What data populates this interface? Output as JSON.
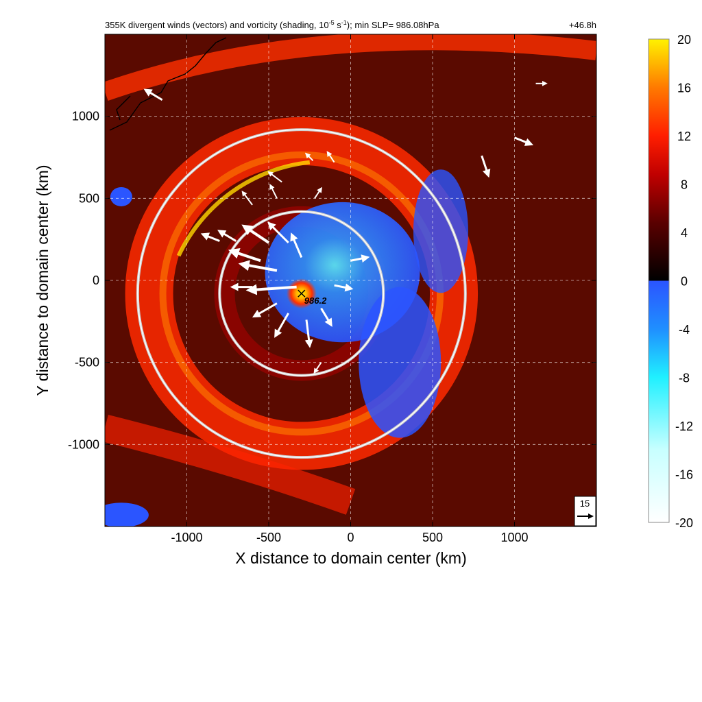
{
  "chart_data": {
    "type": "heatmap",
    "title": "355K divergent winds (vectors) and vorticity (shading, 10",
    "title_sup1": "-5",
    "title_mid": " s",
    "title_sup2": "-1",
    "title_end": "); min SLP= 986.08hPa",
    "time_label": "+46.8h",
    "xlabel": "X distance to domain center (km)",
    "ylabel": "Y distance to domain center (km)",
    "xlim": [
      -1500,
      1500
    ],
    "ylim": [
      -1500,
      1500
    ],
    "xticks": [
      -1000,
      -500,
      0,
      500,
      1000
    ],
    "yticks": [
      -1000,
      -500,
      0,
      500,
      1000
    ],
    "grid": true,
    "colorbar": {
      "ticks": [
        20,
        16,
        12,
        8,
        4,
        0,
        -4,
        -8,
        -12,
        -16,
        -20
      ],
      "range": [
        -20,
        20
      ],
      "positive_colors": [
        "#000000",
        "#5a0000",
        "#b30000",
        "#ff1e00",
        "#ff7a00",
        "#ffc800",
        "#fff200"
      ],
      "negative_colors": [
        "#2b55ff",
        "#1f8fff",
        "#00d8ff",
        "#5cf2ff",
        "#c8ffff",
        "#ffffff"
      ]
    },
    "storm_center": {
      "x": -300,
      "y": -80,
      "label": "986.2"
    },
    "range_rings_km": [
      500,
      1000
    ],
    "reference_vector": {
      "label": "15",
      "speed": 15
    },
    "vorticity_features": [
      {
        "kind": "outer_ring",
        "value": 12,
        "radius": 930
      },
      {
        "kind": "inner_ring",
        "value": 10,
        "radius": 470
      },
      {
        "kind": "northern_band",
        "value": 9
      },
      {
        "kind": "central_negative",
        "value": -6,
        "radius": 450
      },
      {
        "kind": "core_max",
        "value": 20,
        "x": -300,
        "y": -80
      }
    ],
    "vectors_description": "divergent wind vectors radiating outward from storm center",
    "vectors": [
      {
        "x": -330,
        "y": -40,
        "u": -30,
        "v": -2
      },
      {
        "x": -450,
        "y": 60,
        "u": -22,
        "v": 4
      },
      {
        "x": -550,
        "y": 120,
        "u": -18,
        "v": 6
      },
      {
        "x": -500,
        "y": 230,
        "u": -15,
        "v": 10
      },
      {
        "x": -380,
        "y": 230,
        "u": -12,
        "v": 12
      },
      {
        "x": -300,
        "y": 140,
        "u": -6,
        "v": 14
      },
      {
        "x": -450,
        "y": -140,
        "u": -14,
        "v": -8
      },
      {
        "x": -380,
        "y": -200,
        "u": -8,
        "v": -14
      },
      {
        "x": -270,
        "y": -240,
        "u": 2,
        "v": -16
      },
      {
        "x": -180,
        "y": -170,
        "u": 6,
        "v": -10
      },
      {
        "x": -100,
        "y": -30,
        "u": 10,
        "v": -2
      },
      {
        "x": 0,
        "y": 120,
        "u": 10,
        "v": 2
      },
      {
        "x": -600,
        "y": -40,
        "u": -12,
        "v": 0
      },
      {
        "x": -700,
        "y": 240,
        "u": -10,
        "v": 6
      },
      {
        "x": -600,
        "y": 460,
        "u": -6,
        "v": 8
      },
      {
        "x": -450,
        "y": 500,
        "u": -4,
        "v": 8
      },
      {
        "x": -220,
        "y": 500,
        "u": 4,
        "v": 6
      },
      {
        "x": -100,
        "y": 720,
        "u": -4,
        "v": 6
      },
      {
        "x": -230,
        "y": 730,
        "u": -4,
        "v": 4
      },
      {
        "x": -420,
        "y": 600,
        "u": -8,
        "v": 6
      },
      {
        "x": 800,
        "y": 760,
        "u": 4,
        "v": -12
      },
      {
        "x": 1000,
        "y": 870,
        "u": 10,
        "v": -4
      },
      {
        "x": 1130,
        "y": 1200,
        "u": 6,
        "v": 0
      },
      {
        "x": -1150,
        "y": 1100,
        "u": -10,
        "v": 6
      },
      {
        "x": -800,
        "y": 240,
        "u": -10,
        "v": 4
      },
      {
        "x": -180,
        "y": -500,
        "u": -4,
        "v": -6
      }
    ]
  }
}
